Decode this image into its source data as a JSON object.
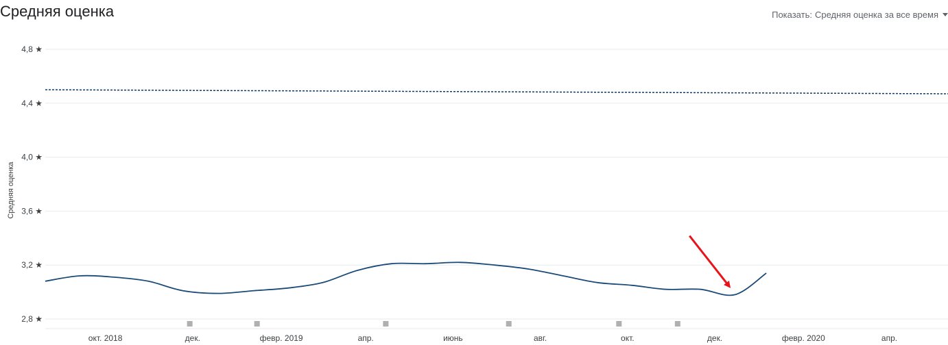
{
  "header": {
    "title": "Средняя оценка",
    "show_label": "Показать:",
    "show_value": "Средняя оценка за все время"
  },
  "colors": {
    "series": "#1a4a78",
    "average": "#0d3a66",
    "grid": "#e8eaed",
    "marker": "#b0b0b0",
    "arrow": "#e8141a"
  },
  "chart_data": {
    "type": "line",
    "ylabel": "Средняя оценка",
    "ylim": [
      2.8,
      4.8
    ],
    "y_ticks": [
      {
        "value": 4.8,
        "label": "4,8 ★"
      },
      {
        "value": 4.4,
        "label": "4,4 ★"
      },
      {
        "value": 4.0,
        "label": "4,0 ★"
      },
      {
        "value": 3.6,
        "label": "3,6 ★"
      },
      {
        "value": 3.2,
        "label": "3,2 ★"
      },
      {
        "value": 2.8,
        "label": "2,8 ★"
      }
    ],
    "xlim": [
      "2018-08-20",
      "2020-05-12"
    ],
    "x_ticks": [
      {
        "date": "2018-10-01",
        "label": "окт. 2018"
      },
      {
        "date": "2018-12-01",
        "label": "дек."
      },
      {
        "date": "2019-02-01",
        "label": "февр. 2019"
      },
      {
        "date": "2019-04-01",
        "label": "апр."
      },
      {
        "date": "2019-06-01",
        "label": "июнь"
      },
      {
        "date": "2019-08-01",
        "label": "авг."
      },
      {
        "date": "2019-10-01",
        "label": "окт."
      },
      {
        "date": "2019-12-01",
        "label": "дек."
      },
      {
        "date": "2020-02-01",
        "label": "февр. 2020"
      },
      {
        "date": "2020-04-01",
        "label": "апр."
      }
    ],
    "series": [
      {
        "points": [
          [
            "2018-08-20",
            3.08
          ],
          [
            "2018-09-13",
            3.12
          ],
          [
            "2018-10-07",
            3.11
          ],
          [
            "2018-10-31",
            3.08
          ],
          [
            "2018-11-24",
            3.01
          ],
          [
            "2018-12-19",
            2.99
          ],
          [
            "2019-01-13",
            3.01
          ],
          [
            "2019-02-06",
            3.03
          ],
          [
            "2019-03-02",
            3.07
          ],
          [
            "2019-03-26",
            3.16
          ],
          [
            "2019-04-19",
            3.21
          ],
          [
            "2019-05-13",
            3.21
          ],
          [
            "2019-06-06",
            3.22
          ],
          [
            "2019-06-30",
            3.2
          ],
          [
            "2019-07-24",
            3.17
          ],
          [
            "2019-08-17",
            3.12
          ],
          [
            "2019-09-10",
            3.07
          ],
          [
            "2019-10-04",
            3.05
          ],
          [
            "2019-10-28",
            3.02
          ],
          [
            "2019-11-21",
            3.02
          ],
          [
            "2019-12-15",
            2.98
          ],
          [
            "2020-01-06",
            3.14
          ]
        ]
      }
    ],
    "average_line": {
      "style": "dashed",
      "start": 4.5,
      "end": 4.47
    },
    "event_markers": [
      "2018-11-29",
      "2019-01-15",
      "2019-04-15",
      "2019-07-10",
      "2019-09-25",
      "2019-11-05"
    ],
    "annotation": "red arrow pointing at the dip in April 2020"
  }
}
